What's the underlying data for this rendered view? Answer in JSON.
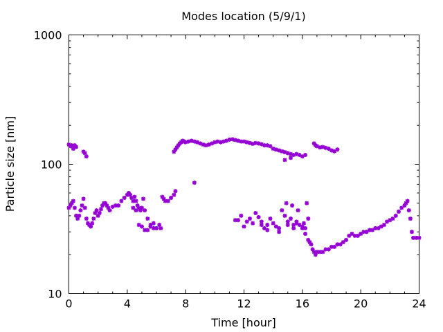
{
  "chart_data": {
    "type": "scatter",
    "title": "Modes location (5/9/1)",
    "xlabel": "Time [hour]",
    "ylabel": "Particle size [nm]",
    "xlim": [
      0,
      24
    ],
    "ylim": [
      10,
      1000
    ],
    "yscale": "log",
    "xticks": [
      0,
      4,
      8,
      12,
      16,
      20,
      24
    ],
    "xtick_labels": [
      "0",
      "4",
      "8",
      "12",
      "16",
      "20",
      "24"
    ],
    "yticks": [
      10,
      100,
      1000
    ],
    "ytick_labels": [
      "10",
      "100",
      "1000"
    ],
    "grid": false,
    "legend": "none",
    "marker_color": "#9400d3",
    "series": [
      {
        "points": [
          [
            0.0,
            142
          ],
          [
            0.1,
            138
          ],
          [
            0.2,
            140
          ],
          [
            0.3,
            132
          ],
          [
            0.4,
            140
          ],
          [
            0.5,
            136
          ],
          [
            1.0,
            125
          ],
          [
            1.1,
            122
          ],
          [
            1.2,
            115
          ],
          [
            7.2,
            125
          ],
          [
            7.3,
            130
          ],
          [
            7.4,
            135
          ],
          [
            7.5,
            140
          ],
          [
            7.6,
            145
          ],
          [
            7.7,
            148
          ],
          [
            7.8,
            152
          ],
          [
            7.9,
            150
          ],
          [
            8.0,
            148
          ],
          [
            8.2,
            150
          ],
          [
            8.4,
            152
          ],
          [
            8.6,
            150
          ],
          [
            8.8,
            148
          ],
          [
            9.0,
            145
          ],
          [
            9.2,
            142
          ],
          [
            9.4,
            140
          ],
          [
            9.6,
            142
          ],
          [
            9.8,
            145
          ],
          [
            10.0,
            148
          ],
          [
            10.2,
            150
          ],
          [
            10.4,
            148
          ],
          [
            10.6,
            150
          ],
          [
            10.8,
            152
          ],
          [
            11.0,
            155
          ],
          [
            11.2,
            156
          ],
          [
            11.4,
            154
          ],
          [
            11.6,
            152
          ],
          [
            11.8,
            150
          ],
          [
            12.0,
            150
          ],
          [
            12.2,
            148
          ],
          [
            12.4,
            146
          ],
          [
            12.6,
            144
          ],
          [
            12.8,
            146
          ],
          [
            13.0,
            145
          ],
          [
            13.2,
            143
          ],
          [
            13.4,
            140
          ],
          [
            13.6,
            140
          ],
          [
            13.8,
            138
          ],
          [
            14.0,
            132
          ],
          [
            14.2,
            130
          ],
          [
            14.4,
            128
          ],
          [
            14.6,
            126
          ],
          [
            14.8,
            124
          ],
          [
            15.0,
            122
          ],
          [
            15.2,
            120
          ],
          [
            15.4,
            118
          ],
          [
            15.6,
            120
          ],
          [
            15.8,
            118
          ],
          [
            16.0,
            115
          ],
          [
            16.2,
            118
          ],
          [
            14.8,
            108
          ],
          [
            15.2,
            112
          ],
          [
            16.8,
            145
          ],
          [
            16.9,
            140
          ],
          [
            17.0,
            138
          ],
          [
            17.2,
            135
          ],
          [
            17.4,
            136
          ],
          [
            17.6,
            134
          ],
          [
            17.8,
            132
          ],
          [
            18.0,
            128
          ],
          [
            18.2,
            126
          ],
          [
            18.4,
            130
          ]
        ]
      },
      {
        "points": [
          [
            0.0,
            46
          ],
          [
            0.1,
            48
          ],
          [
            0.2,
            50
          ],
          [
            0.3,
            52
          ],
          [
            0.4,
            46
          ],
          [
            0.5,
            40
          ],
          [
            0.6,
            38
          ],
          [
            0.7,
            40
          ],
          [
            0.8,
            44
          ],
          [
            0.9,
            48
          ],
          [
            1.0,
            54
          ],
          [
            1.1,
            46
          ],
          [
            1.2,
            38
          ],
          [
            1.3,
            35
          ],
          [
            1.4,
            34
          ],
          [
            1.5,
            33
          ],
          [
            1.6,
            35
          ],
          [
            1.7,
            38
          ],
          [
            1.8,
            42
          ],
          [
            1.9,
            44
          ],
          [
            2.0,
            40
          ],
          [
            2.1,
            42
          ],
          [
            2.2,
            45
          ],
          [
            2.3,
            48
          ],
          [
            2.4,
            50
          ],
          [
            2.5,
            50
          ],
          [
            2.6,
            48
          ],
          [
            2.7,
            46
          ],
          [
            2.8,
            44
          ],
          [
            3.0,
            47
          ],
          [
            3.2,
            48
          ],
          [
            3.4,
            48
          ],
          [
            3.6,
            52
          ],
          [
            3.8,
            55
          ],
          [
            4.0,
            58
          ],
          [
            4.1,
            60
          ],
          [
            4.2,
            58
          ],
          [
            4.3,
            55
          ],
          [
            4.4,
            52
          ],
          [
            4.5,
            56
          ],
          [
            4.6,
            52
          ],
          [
            4.7,
            48
          ],
          [
            4.8,
            46
          ],
          [
            4.9,
            44
          ],
          [
            5.0,
            46
          ],
          [
            5.1,
            54
          ],
          [
            5.2,
            44
          ],
          [
            5.4,
            38
          ],
          [
            5.6,
            34
          ],
          [
            5.8,
            32
          ],
          [
            6.0,
            32
          ],
          [
            6.2,
            34
          ],
          [
            6.3,
            32
          ],
          [
            6.4,
            56
          ],
          [
            6.5,
            54
          ],
          [
            6.6,
            52
          ],
          [
            6.8,
            52
          ],
          [
            7.0,
            55
          ],
          [
            7.2,
            58
          ],
          [
            7.3,
            62
          ],
          [
            4.4,
            46
          ],
          [
            4.6,
            44
          ],
          [
            4.8,
            34
          ],
          [
            5.0,
            33
          ],
          [
            5.2,
            31
          ],
          [
            5.4,
            31
          ],
          [
            5.6,
            33
          ],
          [
            5.8,
            35
          ],
          [
            6.0,
            32
          ],
          [
            8.6,
            72
          ]
        ]
      },
      {
        "points": [
          [
            11.4,
            37
          ],
          [
            11.6,
            37
          ],
          [
            11.8,
            40
          ],
          [
            12.0,
            33
          ],
          [
            12.2,
            36
          ],
          [
            12.4,
            38
          ],
          [
            12.6,
            35
          ],
          [
            12.8,
            42
          ],
          [
            13.0,
            39
          ],
          [
            13.2,
            36
          ],
          [
            13.4,
            32
          ],
          [
            13.6,
            34
          ],
          [
            13.8,
            38
          ],
          [
            14.0,
            35
          ],
          [
            14.2,
            33
          ],
          [
            14.4,
            32
          ],
          [
            14.6,
            44
          ],
          [
            14.8,
            40
          ],
          [
            15.0,
            36
          ],
          [
            15.2,
            38
          ],
          [
            15.4,
            34
          ],
          [
            15.6,
            35
          ],
          [
            15.8,
            34
          ],
          [
            16.0,
            33
          ],
          [
            16.1,
            35
          ],
          [
            16.2,
            32
          ],
          [
            13.2,
            34
          ],
          [
            13.6,
            31
          ],
          [
            14.4,
            30
          ],
          [
            14.9,
            50
          ],
          [
            15.3,
            48
          ],
          [
            15.7,
            44
          ],
          [
            16.3,
            50
          ],
          [
            16.4,
            38
          ],
          [
            15.0,
            34
          ],
          [
            15.4,
            32
          ],
          [
            15.6,
            36
          ],
          [
            16.0,
            32
          ],
          [
            16.2,
            29
          ],
          [
            16.4,
            26
          ],
          [
            16.5,
            25
          ],
          [
            16.6,
            24
          ],
          [
            16.7,
            22
          ],
          [
            16.8,
            21
          ],
          [
            16.9,
            20
          ],
          [
            17.0,
            21
          ],
          [
            17.2,
            21
          ],
          [
            17.4,
            21
          ],
          [
            17.6,
            22
          ],
          [
            17.8,
            22
          ],
          [
            18.0,
            23
          ],
          [
            18.2,
            23
          ],
          [
            18.4,
            24
          ],
          [
            18.6,
            24
          ],
          [
            18.8,
            25
          ],
          [
            19.0,
            26
          ],
          [
            19.2,
            28
          ],
          [
            19.4,
            29
          ],
          [
            19.6,
            28
          ],
          [
            19.8,
            28
          ],
          [
            20.0,
            29
          ],
          [
            20.2,
            30
          ],
          [
            20.4,
            30
          ],
          [
            20.6,
            31
          ],
          [
            20.8,
            31
          ],
          [
            21.0,
            32
          ],
          [
            21.2,
            32
          ],
          [
            21.4,
            33
          ],
          [
            21.6,
            34
          ],
          [
            21.8,
            36
          ],
          [
            22.0,
            37
          ],
          [
            22.2,
            38
          ],
          [
            22.4,
            40
          ],
          [
            22.6,
            43
          ],
          [
            22.8,
            46
          ],
          [
            23.0,
            48
          ],
          [
            23.1,
            50
          ],
          [
            23.2,
            52
          ],
          [
            23.3,
            44
          ],
          [
            23.4,
            38
          ],
          [
            23.5,
            30
          ],
          [
            23.6,
            27
          ],
          [
            23.8,
            27
          ],
          [
            24.0,
            27
          ]
        ]
      }
    ]
  }
}
